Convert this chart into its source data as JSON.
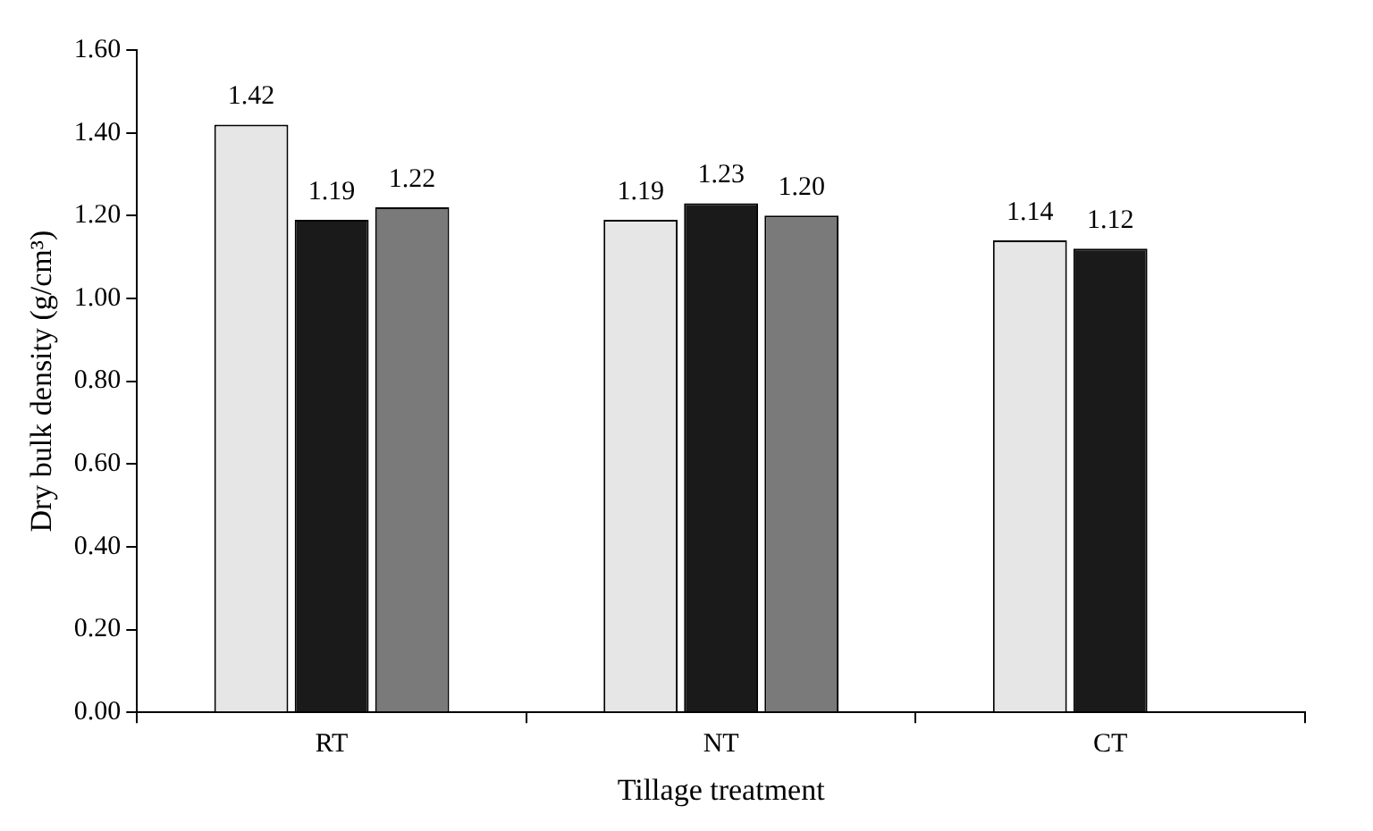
{
  "chart_data": {
    "type": "bar",
    "xlabel": "Tillage treatment",
    "ylabel": "Dry bulk density (g/cm³)",
    "categories": [
      "RT",
      "NT",
      "CT"
    ],
    "series": [
      {
        "color": "#e6e6e6",
        "values": [
          1.42,
          1.19,
          1.14
        ],
        "value_labels": [
          "1.42",
          "1.19",
          "1.14"
        ]
      },
      {
        "color": "#1a1a1a",
        "values": [
          1.19,
          1.23,
          1.12
        ],
        "value_labels": [
          "1.19",
          "1.23",
          "1.12"
        ]
      },
      {
        "color": "#7a7a7a",
        "values": [
          1.22,
          1.2,
          null
        ],
        "value_labels": [
          "1.22",
          "1.20",
          null
        ]
      }
    ],
    "ylim": [
      0,
      1.6
    ],
    "yticks": [
      {
        "value": 0,
        "label": "0.00"
      },
      {
        "value": 0.2,
        "label": "0.20"
      },
      {
        "value": 0.4,
        "label": "0.40"
      },
      {
        "value": 0.6,
        "label": "0.60"
      },
      {
        "value": 0.8,
        "label": "0.80"
      },
      {
        "value": 1.0,
        "label": "1.00"
      },
      {
        "value": 1.2,
        "label": "1.20"
      },
      {
        "value": 1.4,
        "label": "1.40"
      },
      {
        "value": 1.6,
        "label": "1.60"
      }
    ],
    "grid": false,
    "legend": false
  }
}
